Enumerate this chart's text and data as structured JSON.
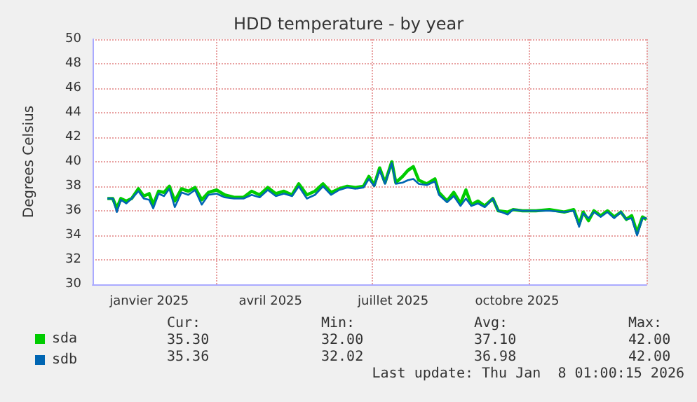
{
  "chart_data": {
    "type": "line",
    "title": "HDD temperature - by year",
    "ylabel": "Degrees Celsius",
    "x": [
      "2024-12-01",
      "2024-12-05",
      "2024-12-08",
      "2024-12-11",
      "2024-12-15",
      "2024-12-19",
      "2024-12-24",
      "2024-12-28",
      "2025-01-01",
      "2025-01-04",
      "2025-01-08",
      "2025-01-12",
      "2025-01-16",
      "2025-01-20",
      "2025-01-25",
      "2025-01-30",
      "2025-02-04",
      "2025-02-09",
      "2025-02-14",
      "2025-02-20",
      "2025-02-26",
      "2025-03-05",
      "2025-03-12",
      "2025-03-18",
      "2025-03-24",
      "2025-03-30",
      "2025-04-05",
      "2025-04-11",
      "2025-04-17",
      "2025-04-22",
      "2025-04-28",
      "2025-05-04",
      "2025-05-10",
      "2025-05-16",
      "2025-05-22",
      "2025-05-28",
      "2025-06-03",
      "2025-06-09",
      "2025-06-13",
      "2025-06-17",
      "2025-06-21",
      "2025-06-25",
      "2025-06-30",
      "2025-07-03",
      "2025-07-08",
      "2025-07-12",
      "2025-07-16",
      "2025-07-20",
      "2025-07-26",
      "2025-08-01",
      "2025-08-04",
      "2025-08-10",
      "2025-08-15",
      "2025-08-20",
      "2025-08-24",
      "2025-08-28",
      "2025-09-02",
      "2025-09-07",
      "2025-09-13",
      "2025-09-17",
      "2025-09-24",
      "2025-09-28",
      "2025-10-05",
      "2025-10-15",
      "2025-10-25",
      "2025-11-05",
      "2025-11-12",
      "2025-11-16",
      "2025-11-19",
      "2025-11-23",
      "2025-11-27",
      "2025-12-02",
      "2025-12-07",
      "2025-12-12",
      "2025-12-17",
      "2025-12-21",
      "2025-12-25",
      "2025-12-29",
      "2026-01-02",
      "2026-01-05"
    ],
    "series": [
      {
        "name": "sda",
        "color": "#00cc00",
        "values": [
          37.0,
          37.0,
          36.2,
          37.0,
          36.8,
          37.0,
          37.8,
          37.2,
          37.4,
          36.5,
          37.6,
          37.5,
          38.0,
          36.8,
          37.8,
          37.6,
          37.9,
          36.9,
          37.5,
          37.7,
          37.3,
          37.1,
          37.1,
          37.6,
          37.3,
          37.9,
          37.4,
          37.6,
          37.3,
          38.2,
          37.3,
          37.6,
          38.2,
          37.5,
          37.8,
          38.0,
          37.9,
          38.0,
          38.8,
          38.1,
          39.5,
          38.3,
          40.0,
          38.3,
          38.8,
          39.3,
          39.6,
          38.5,
          38.2,
          38.6,
          37.5,
          36.8,
          37.5,
          36.6,
          37.7,
          36.5,
          36.8,
          36.4,
          37.0,
          36.0,
          35.9,
          36.1,
          36.0,
          36.0,
          36.1,
          35.9,
          36.1,
          34.9,
          35.9,
          35.2,
          36.0,
          35.6,
          36.0,
          35.5,
          35.9,
          35.3,
          35.6,
          34.2,
          35.5,
          35.3
        ]
      },
      {
        "name": "sdb",
        "color": "#0066b3",
        "values": [
          37.0,
          37.0,
          35.9,
          36.9,
          36.6,
          37.0,
          37.6,
          37.0,
          36.9,
          36.2,
          37.4,
          37.2,
          37.8,
          36.3,
          37.5,
          37.3,
          37.7,
          36.5,
          37.3,
          37.4,
          37.1,
          37.0,
          37.0,
          37.3,
          37.1,
          37.7,
          37.2,
          37.4,
          37.2,
          38.0,
          37.0,
          37.3,
          38.0,
          37.3,
          37.7,
          37.9,
          37.8,
          37.9,
          38.6,
          38.0,
          39.3,
          38.2,
          39.9,
          38.2,
          38.3,
          38.5,
          38.6,
          38.2,
          38.1,
          38.4,
          37.3,
          36.7,
          37.2,
          36.4,
          37.0,
          36.4,
          36.6,
          36.3,
          37.0,
          36.0,
          35.7,
          36.1,
          36.0,
          36.0,
          36.0,
          35.9,
          36.0,
          34.7,
          35.8,
          35.4,
          35.9,
          35.5,
          35.9,
          35.4,
          35.9,
          35.3,
          35.4,
          34.0,
          35.4,
          35.4
        ]
      }
    ],
    "xlim": [
      "2024-11-20",
      "2026-01-05"
    ],
    "xticks": [
      {
        "value": "2025-01-01",
        "label": "janvier 2025"
      },
      {
        "value": "2025-04-01",
        "label": "avril 2025"
      },
      {
        "value": "2025-07-01",
        "label": "juillet 2025"
      },
      {
        "value": "2025-10-01",
        "label": "octobre 2025"
      }
    ],
    "ylim": [
      30,
      50
    ],
    "yticks": [
      30,
      32,
      34,
      36,
      38,
      40,
      42,
      44,
      46,
      48,
      50
    ],
    "grid": true,
    "legend": "bottom left",
    "marker": "none",
    "line_style": "solid",
    "annotations": [
      "Cur:",
      "Min:",
      "Avg:",
      "Max:",
      "35.30",
      "32.00",
      "37.10",
      "42.00",
      "35.36",
      "32.02",
      "36.98",
      "42.00",
      "Last update: Thu Jan  8 01:00:15 2026"
    ]
  }
}
